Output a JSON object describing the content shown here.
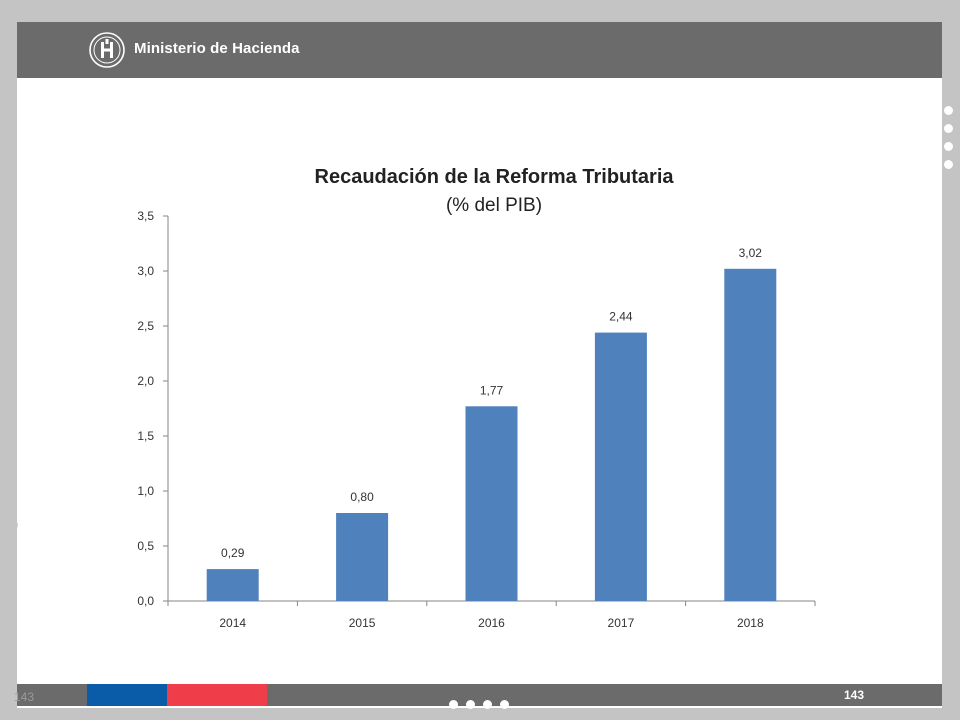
{
  "header": {
    "organization": "Ministerio de Hacienda",
    "logo_icon": "hacienda-seal-icon"
  },
  "footer": {
    "page_number": "143",
    "page_number_ghost": "143"
  },
  "colors": {
    "bar": "#4f81bd",
    "header": "#6b6b6b",
    "stripe_blue": "#0a5ca8",
    "stripe_red": "#ef3e4a"
  },
  "chart_data": {
    "type": "bar",
    "title": "Recaudación de la Reforma Tributaria",
    "subtitle": "(% del PIB)",
    "categories": [
      "2014",
      "2015",
      "2016",
      "2017",
      "2018"
    ],
    "values": [
      0.29,
      0.8,
      1.77,
      2.44,
      3.02
    ],
    "data_labels": [
      "0,29",
      "0,80",
      "1,77",
      "2,44",
      "3,02"
    ],
    "ylim": [
      0,
      3.5
    ],
    "yticks": [
      0,
      0.5,
      1.0,
      1.5,
      2.0,
      2.5,
      3.0,
      3.5
    ],
    "ytick_labels": [
      "0,0",
      "0,5",
      "1,0",
      "1,5",
      "2,0",
      "2,5",
      "3,0",
      "3,5"
    ],
    "grid": false,
    "legend": "none"
  }
}
